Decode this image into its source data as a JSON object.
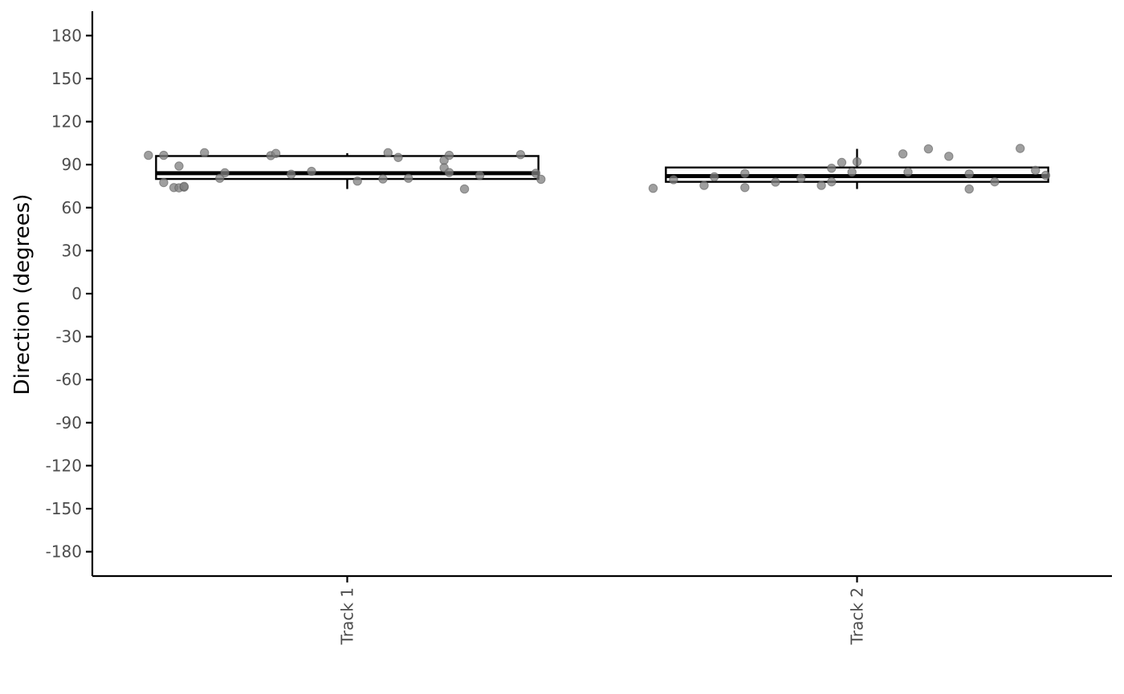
{
  "chart_data": {
    "type": "box",
    "ylabel": "Direction (degrees)",
    "xlabel": "",
    "categories": [
      "Track 1",
      "Track 2"
    ],
    "ylim": [
      -197,
      197
    ],
    "yticks": [
      180,
      150,
      120,
      90,
      60,
      30,
      0,
      -30,
      -60,
      -90,
      -120,
      -150,
      -180
    ],
    "grid": false,
    "boxes": [
      {
        "category": "Track 1",
        "whisker_low": 73,
        "q1": 80,
        "median": 84,
        "q3": 96,
        "whisker_high": 98
      },
      {
        "category": "Track 2",
        "whisker_low": 73,
        "q1": 78,
        "median": 82,
        "q3": 88,
        "whisker_high": 101
      }
    ],
    "points": [
      {
        "category": "Track 1",
        "jitter": -0.39,
        "y": 96.5
      },
      {
        "category": "Track 1",
        "jitter": -0.36,
        "y": 77.5
      },
      {
        "category": "Track 1",
        "jitter": -0.36,
        "y": 96.5
      },
      {
        "category": "Track 1",
        "jitter": -0.34,
        "y": 74
      },
      {
        "category": "Track 1",
        "jitter": -0.33,
        "y": 73.8
      },
      {
        "category": "Track 1",
        "jitter": -0.32,
        "y": 74.3
      },
      {
        "category": "Track 1",
        "jitter": -0.33,
        "y": 89
      },
      {
        "category": "Track 1",
        "jitter": -0.32,
        "y": 74.8
      },
      {
        "category": "Track 1",
        "jitter": -0.28,
        "y": 98.3
      },
      {
        "category": "Track 1",
        "jitter": -0.25,
        "y": 80.5
      },
      {
        "category": "Track 1",
        "jitter": -0.24,
        "y": 84.3
      },
      {
        "category": "Track 1",
        "jitter": -0.15,
        "y": 96.3
      },
      {
        "category": "Track 1",
        "jitter": -0.14,
        "y": 97.8
      },
      {
        "category": "Track 1",
        "jitter": -0.11,
        "y": 83.3
      },
      {
        "category": "Track 1",
        "jitter": -0.07,
        "y": 85.3
      },
      {
        "category": "Track 1",
        "jitter": 0.02,
        "y": 78.5
      },
      {
        "category": "Track 1",
        "jitter": 0.07,
        "y": 80
      },
      {
        "category": "Track 1",
        "jitter": 0.08,
        "y": 98.3
      },
      {
        "category": "Track 1",
        "jitter": 0.1,
        "y": 95
      },
      {
        "category": "Track 1",
        "jitter": 0.12,
        "y": 80.5
      },
      {
        "category": "Track 1",
        "jitter": 0.19,
        "y": 93
      },
      {
        "category": "Track 1",
        "jitter": 0.19,
        "y": 87.8
      },
      {
        "category": "Track 1",
        "jitter": 0.2,
        "y": 96.5
      },
      {
        "category": "Track 1",
        "jitter": 0.2,
        "y": 84.5
      },
      {
        "category": "Track 1",
        "jitter": 0.23,
        "y": 73
      },
      {
        "category": "Track 1",
        "jitter": 0.26,
        "y": 82.5
      },
      {
        "category": "Track 1",
        "jitter": 0.34,
        "y": 97
      },
      {
        "category": "Track 1",
        "jitter": 0.37,
        "y": 84
      },
      {
        "category": "Track 1",
        "jitter": 0.38,
        "y": 79.8
      },
      {
        "category": "Track 2",
        "jitter": -0.4,
        "y": 73.5
      },
      {
        "category": "Track 2",
        "jitter": -0.36,
        "y": 79.5
      },
      {
        "category": "Track 2",
        "jitter": -0.3,
        "y": 75.5
      },
      {
        "category": "Track 2",
        "jitter": -0.28,
        "y": 81.5
      },
      {
        "category": "Track 2",
        "jitter": -0.22,
        "y": 74
      },
      {
        "category": "Track 2",
        "jitter": -0.22,
        "y": 83.8
      },
      {
        "category": "Track 2",
        "jitter": -0.16,
        "y": 77.8
      },
      {
        "category": "Track 2",
        "jitter": -0.11,
        "y": 80.5
      },
      {
        "category": "Track 2",
        "jitter": -0.07,
        "y": 75.5
      },
      {
        "category": "Track 2",
        "jitter": -0.05,
        "y": 78
      },
      {
        "category": "Track 2",
        "jitter": -0.05,
        "y": 87.5
      },
      {
        "category": "Track 2",
        "jitter": -0.03,
        "y": 91.5
      },
      {
        "category": "Track 2",
        "jitter": -0.01,
        "y": 84.8
      },
      {
        "category": "Track 2",
        "jitter": 0.0,
        "y": 92
      },
      {
        "category": "Track 2",
        "jitter": 0.09,
        "y": 97.5
      },
      {
        "category": "Track 2",
        "jitter": 0.1,
        "y": 84.8
      },
      {
        "category": "Track 2",
        "jitter": 0.14,
        "y": 101
      },
      {
        "category": "Track 2",
        "jitter": 0.18,
        "y": 95.8
      },
      {
        "category": "Track 2",
        "jitter": 0.22,
        "y": 83.5
      },
      {
        "category": "Track 2",
        "jitter": 0.22,
        "y": 73
      },
      {
        "category": "Track 2",
        "jitter": 0.27,
        "y": 78
      },
      {
        "category": "Track 2",
        "jitter": 0.32,
        "y": 101.3
      },
      {
        "category": "Track 2",
        "jitter": 0.35,
        "y": 86
      },
      {
        "category": "Track 2",
        "jitter": 0.37,
        "y": 82.5
      }
    ]
  }
}
